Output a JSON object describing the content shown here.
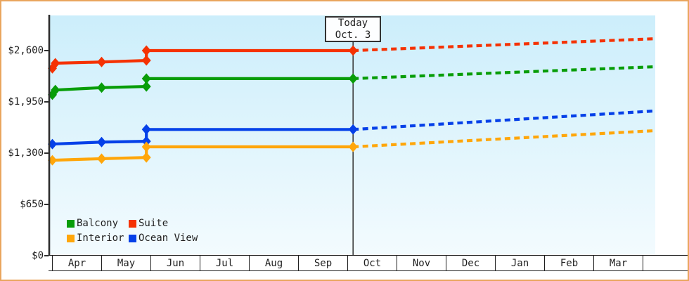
{
  "chart_data": {
    "type": "line",
    "description": "Cruise cabin price history (solid) and forecast after today (dashed), by cabin category",
    "x_axis": {
      "unit": "month",
      "months": [
        "Apr",
        "May",
        "Jun",
        "Jul",
        "Aug",
        "Sep",
        "Oct",
        "Nov",
        "Dec",
        "Jan",
        "Feb",
        "Mar"
      ]
    },
    "y_axis": {
      "tick_labels": [
        "$2,600",
        "$1,950",
        "$1,300",
        "$650",
        "$0"
      ],
      "tick_values": [
        2600,
        1950,
        1300,
        650,
        0
      ],
      "range": [
        0,
        2600
      ]
    },
    "today_marker": {
      "line1": "Today",
      "line2": "Oct. 3",
      "month_position": 6.11
    },
    "series": [
      {
        "name": "Suite",
        "color": "#f53203",
        "solid": [
          [
            0,
            2375
          ],
          [
            0.06,
            2440
          ],
          [
            1,
            2455
          ],
          [
            1.91,
            2475
          ],
          [
            1.91,
            2600
          ],
          [
            6.11,
            2600
          ]
        ],
        "forecast": [
          [
            6.11,
            2600
          ],
          [
            12.24,
            2750
          ]
        ]
      },
      {
        "name": "Balcony",
        "color": "#089d08",
        "solid": [
          [
            0,
            2040
          ],
          [
            0.06,
            2100
          ],
          [
            1,
            2130
          ],
          [
            1.91,
            2145
          ],
          [
            1.91,
            2245
          ],
          [
            6.11,
            2245
          ]
        ],
        "forecast": [
          [
            6.11,
            2245
          ],
          [
            12.24,
            2395
          ]
        ]
      },
      {
        "name": "Ocean View",
        "color": "#0540e8",
        "solid": [
          [
            0,
            1415
          ],
          [
            1,
            1440
          ],
          [
            1.91,
            1450
          ],
          [
            1.91,
            1600
          ],
          [
            6.11,
            1600
          ]
        ],
        "forecast": [
          [
            6.11,
            1600
          ],
          [
            12.24,
            1835
          ]
        ]
      },
      {
        "name": "Interior",
        "color": "#ffa60a",
        "solid": [
          [
            0,
            1210
          ],
          [
            1,
            1230
          ],
          [
            1.91,
            1245
          ],
          [
            1.91,
            1380
          ],
          [
            6.11,
            1380
          ]
        ],
        "forecast": [
          [
            6.11,
            1380
          ],
          [
            12.24,
            1585
          ]
        ]
      }
    ],
    "legend": {
      "items": [
        {
          "label": "Balcony",
          "series": "Balcony"
        },
        {
          "label": "Suite",
          "series": "Suite"
        },
        {
          "label": "Interior",
          "series": "Interior"
        },
        {
          "label": "Ocean View",
          "series": "Ocean View"
        }
      ]
    },
    "style": {
      "frame_border_color": "#e9a55e",
      "plot_bg_gradient_top": "#cceefb",
      "plot_bg_gradient_bottom": "#f3fbfe",
      "axis_color": "#2e2e2e",
      "today_line_color": "#3c3c3c",
      "forecast_line_style": "dashed"
    }
  }
}
